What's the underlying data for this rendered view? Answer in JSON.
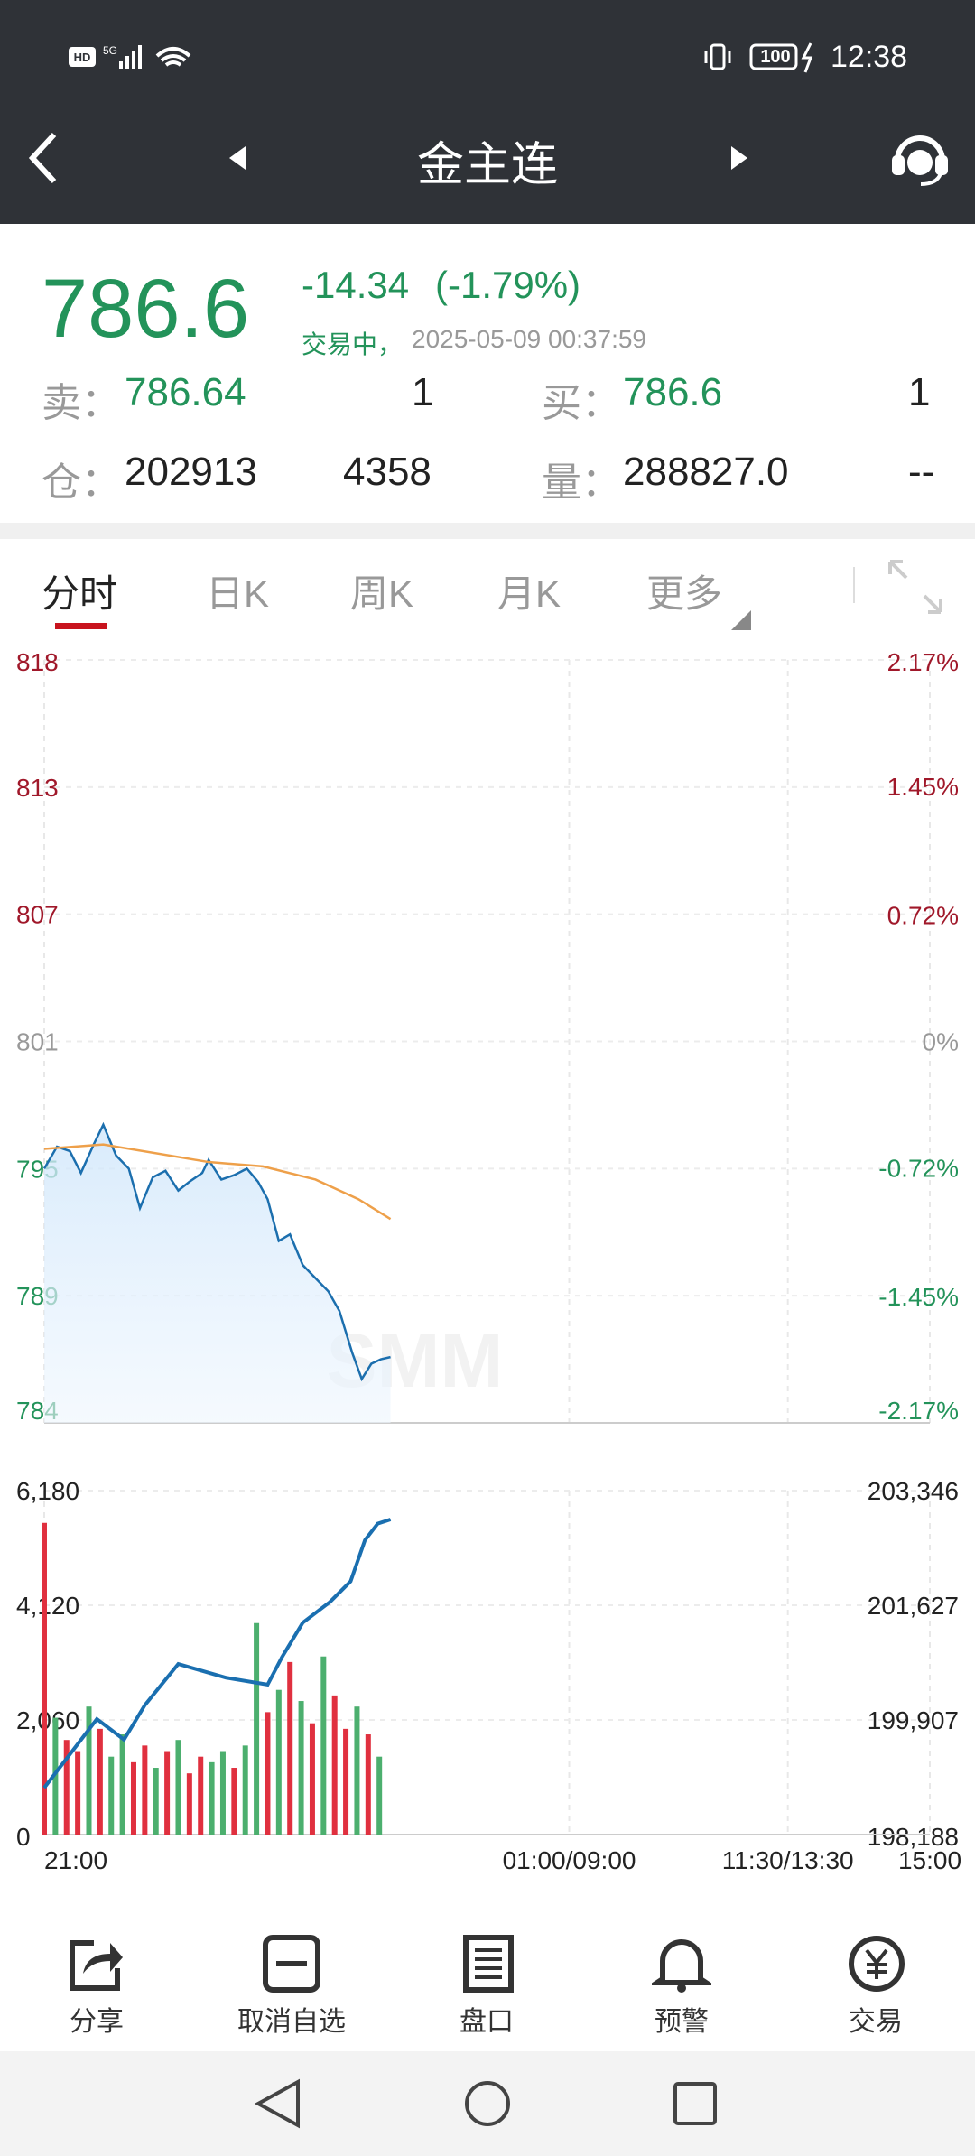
{
  "status": {
    "battery": "100",
    "time": "12:38"
  },
  "header": {
    "title": "金主连"
  },
  "quote": {
    "price": "786.6",
    "change": "-14.34",
    "change_pct": "(-1.79%)",
    "state": "交易中，",
    "timestamp": "2025-05-09 00:37:59",
    "ask_label": "卖：",
    "ask": "786.64",
    "ask_size": "1",
    "bid_label": "买：",
    "bid": "786.6",
    "bid_size": "1",
    "oi_label": "仓：",
    "oi": "202913",
    "oi_change": "4358",
    "vol_label": "量：",
    "volume": "288827.0",
    "vol_extra": "--"
  },
  "tabs": [
    "分时",
    "日K",
    "周K",
    "月K",
    "更多"
  ],
  "chart_data": [
    {
      "type": "line",
      "watermark": "SMM",
      "grid": true,
      "xlim": [
        0,
        555
      ],
      "xticks": [
        {
          "value": 0,
          "label": "21:00"
        },
        {
          "value": 329,
          "label": "01:00/09:00"
        },
        {
          "value": 466,
          "label": "11:30/13:30"
        },
        {
          "value": 555,
          "label": "15:00"
        }
      ],
      "ylim": [
        783.6,
        818.4
      ],
      "yticks": [
        {
          "value": 818.4,
          "label": "818"
        },
        {
          "value": 812.6,
          "label": "813"
        },
        {
          "value": 806.8,
          "label": "807"
        },
        {
          "value": 801,
          "label": "801"
        },
        {
          "value": 795.2,
          "label": "795"
        },
        {
          "value": 789.4,
          "label": "789"
        },
        {
          "value": 783.6,
          "label": "784"
        }
      ],
      "y2lim": [
        -2.17,
        2.17
      ],
      "y2ticks": [
        {
          "value": 2.17,
          "label": "2.17%"
        },
        {
          "value": 1.45,
          "label": "1.45%"
        },
        {
          "value": 0.72,
          "label": "0.72%"
        },
        {
          "value": 0,
          "label": "0%"
        },
        {
          "value": -0.72,
          "label": "-0.72%"
        },
        {
          "value": -1.45,
          "label": "-1.45%"
        },
        {
          "value": -2.17,
          "label": "-2.17%"
        }
      ],
      "series": [
        {
          "color": "#1c6fae",
          "area": true,
          "x": [
            0,
            8,
            16,
            23,
            31,
            37,
            45,
            53,
            60,
            68,
            76,
            84,
            91,
            99,
            103,
            111,
            119,
            127,
            134,
            140,
            147,
            154,
            162,
            170,
            178,
            185,
            193,
            199,
            205,
            211,
            217
          ],
          "values": [
            795.2,
            796.2,
            796.0,
            795.0,
            796.3,
            797.2,
            795.8,
            795.2,
            793.4,
            794.8,
            795.1,
            794.2,
            794.6,
            795.0,
            795.6,
            794.7,
            794.9,
            795.2,
            794.6,
            793.8,
            791.9,
            792.2,
            790.8,
            790.2,
            789.6,
            788.7,
            786.8,
            785.6,
            786.3,
            786.5,
            786.6
          ]
        },
        {
          "color": "#eea04a",
          "x": [
            0,
            37,
            103,
            137,
            170,
            197,
            217
          ],
          "values": [
            796.1,
            796.3,
            795.5,
            795.3,
            794.7,
            793.8,
            792.9
          ]
        }
      ]
    },
    {
      "type": "bar",
      "grid": true,
      "xlim": [
        0,
        555
      ],
      "xticks": [
        {
          "value": 0,
          "label": "21:00"
        },
        {
          "value": 329,
          "label": "01:00/09:00"
        },
        {
          "value": 466,
          "label": "11:30/13:30"
        },
        {
          "value": 555,
          "label": "15:00"
        }
      ],
      "x": [
        0,
        7,
        14,
        21,
        28,
        35,
        42,
        49,
        56,
        63,
        70,
        77,
        84,
        91,
        98,
        105,
        112,
        119,
        126,
        133,
        140,
        147,
        154,
        161,
        168,
        175,
        182,
        189,
        196,
        203,
        210
      ],
      "values": [
        5600,
        2100,
        1700,
        1500,
        2300,
        1900,
        1400,
        1800,
        1300,
        1600,
        1200,
        1500,
        1700,
        1100,
        1400,
        1300,
        1500,
        1200,
        1600,
        3800,
        2200,
        2600,
        3100,
        2400,
        2000,
        3200,
        2500,
        1900,
        2300,
        1800,
        1400
      ],
      "colors": [
        "#e0303f",
        "#4caf6e",
        "#e0303f",
        "#e0303f",
        "#4caf6e",
        "#e0303f",
        "#4caf6e",
        "#4caf6e",
        "#e0303f",
        "#e0303f",
        "#4caf6e",
        "#e0303f",
        "#4caf6e",
        "#e0303f",
        "#e0303f",
        "#4caf6e",
        "#4caf6e",
        "#e0303f",
        "#4caf6e",
        "#4caf6e",
        "#e0303f",
        "#4caf6e",
        "#e0303f",
        "#4caf6e",
        "#e0303f",
        "#4caf6e",
        "#e0303f",
        "#e0303f",
        "#4caf6e",
        "#e0303f",
        "#4caf6e"
      ],
      "ylim": [
        0,
        6180
      ],
      "yticks": [
        0,
        {
          "value": 2060,
          "label": "2,060"
        },
        {
          "value": 4120,
          "label": "4,120"
        },
        {
          "value": 6180,
          "label": "6,180"
        }
      ],
      "y2lim": [
        198188,
        203346
      ],
      "y2ticks": [
        {
          "value": 198188,
          "label": "198,188"
        },
        {
          "value": 199907,
          "label": "199,907"
        },
        {
          "value": 201627,
          "label": "201,627"
        },
        {
          "value": 203346,
          "label": "203,346"
        }
      ],
      "series": [
        {
          "axis": "y2",
          "color": "#1a6fb0",
          "x": [
            0,
            33,
            50,
            63,
            84,
            114,
            140,
            149,
            162,
            179,
            192,
            201,
            209,
            217
          ],
          "values": [
            198890,
            199921,
            199612,
            200127,
            200746,
            200540,
            200437,
            200849,
            201365,
            201675,
            201985,
            202603,
            202851,
            202913
          ]
        }
      ]
    }
  ],
  "toolbar": [
    "分享",
    "取消自选",
    "盘口",
    "预警",
    "交易"
  ]
}
